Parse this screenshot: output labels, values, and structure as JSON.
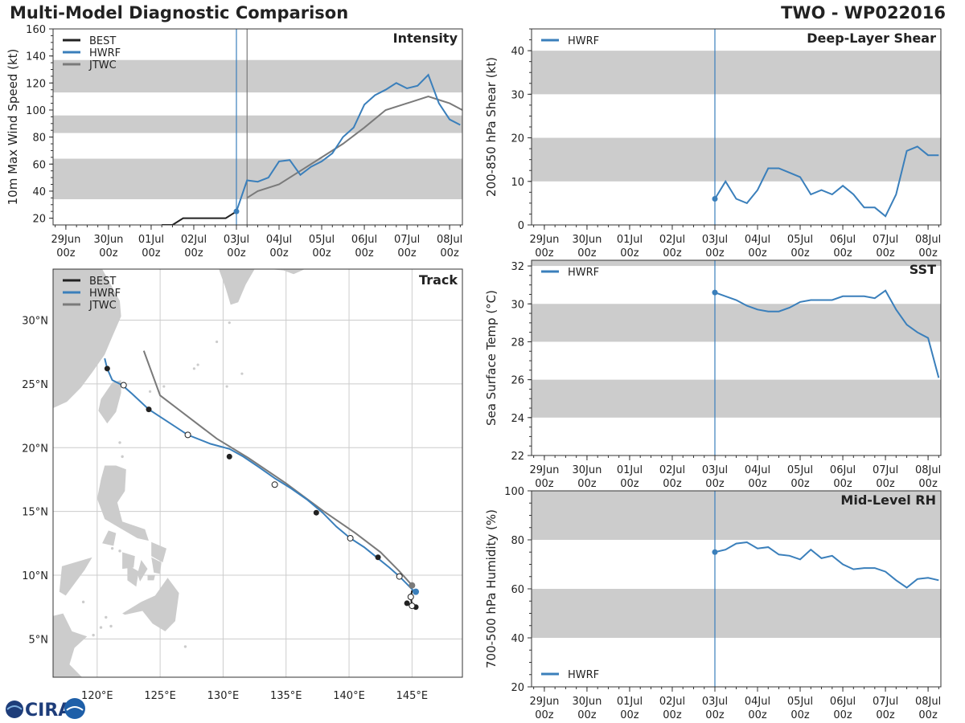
{
  "header": {
    "title_left": "Multi-Model Diagnostic Comparison",
    "title_right": "TWO - WP022016"
  },
  "logo": {
    "text": "CIRA"
  },
  "colors": {
    "best": "#222222",
    "hwrf": "#3a7fbb",
    "jtwc": "#7a7a7a",
    "band": "#cccccc",
    "grid": "#cccccc",
    "land": "#cccccc"
  },
  "time_axis": {
    "range_days": [
      -4.3,
      5.3
    ],
    "ticks": [
      {
        "day": -4,
        "line1": "29Jun",
        "line2": "00z"
      },
      {
        "day": -3,
        "line1": "30Jun",
        "line2": "00z"
      },
      {
        "day": -2,
        "line1": "01Jul",
        "line2": "00z"
      },
      {
        "day": -1,
        "line1": "02Jul",
        "line2": "00z"
      },
      {
        "day": 0,
        "line1": "03Jul",
        "line2": "00z"
      },
      {
        "day": 1,
        "line1": "04Jul",
        "line2": "00z"
      },
      {
        "day": 2,
        "line1": "05Jul",
        "line2": "00z"
      },
      {
        "day": 3,
        "line1": "06Jul",
        "line2": "00z"
      },
      {
        "day": 4,
        "line1": "07Jul",
        "line2": "00z"
      },
      {
        "day": 5,
        "line1": "08Jul",
        "line2": "00z"
      }
    ]
  },
  "chart_data": [
    {
      "id": "intensity",
      "type": "line",
      "title": "Intensity",
      "ylabel": "10m Max Wind Speed (kt)",
      "ylim": [
        15,
        160
      ],
      "yticks": [
        20,
        40,
        60,
        80,
        100,
        120,
        140,
        160
      ],
      "bands": [
        [
          34,
          64
        ],
        [
          83,
          96
        ],
        [
          113,
          137
        ]
      ],
      "vlines": [
        {
          "day": 0,
          "series": "HWRF"
        },
        {
          "day": 0.25,
          "series": "JTWC"
        }
      ],
      "legend": [
        "BEST",
        "HWRF",
        "JTWC"
      ],
      "series": [
        {
          "name": "BEST",
          "x": [
            -1.75,
            -1.5,
            -1.25,
            -1.0,
            -0.75,
            -0.5,
            -0.25,
            0.0
          ],
          "y": [
            15,
            15,
            20,
            20,
            20,
            20,
            20,
            25
          ]
        },
        {
          "name": "HWRF",
          "x": [
            0.0,
            0.25,
            0.5,
            0.75,
            1.0,
            1.25,
            1.5,
            1.75,
            2.0,
            2.25,
            2.5,
            2.75,
            3.0,
            3.25,
            3.5,
            3.75,
            4.0,
            4.25,
            4.5,
            4.75,
            5.0,
            5.25
          ],
          "y": [
            25,
            48,
            47,
            50,
            62,
            63,
            52,
            58,
            62,
            68,
            80,
            87,
            104,
            111,
            115,
            120,
            116,
            118,
            126,
            105,
            93,
            89
          ]
        },
        {
          "name": "JTWC",
          "x": [
            0.25,
            0.5,
            1.0,
            1.5,
            2.0,
            2.5,
            3.0,
            3.5,
            4.0,
            4.5,
            5.0,
            5.3
          ],
          "y": [
            35,
            40,
            45,
            55,
            65,
            75,
            87,
            100,
            105,
            110,
            105,
            100
          ]
        }
      ],
      "markers": [
        {
          "series": "HWRF",
          "x": 0.0,
          "y": 25
        }
      ]
    },
    {
      "id": "shear",
      "type": "line",
      "title": "Deep-Layer Shear",
      "ylabel": "200-850 hPa Shear (kt)",
      "ylim": [
        0,
        45
      ],
      "yticks": [
        0,
        10,
        20,
        30,
        40
      ],
      "bands": [
        [
          10,
          20
        ],
        [
          30,
          40
        ]
      ],
      "vlines": [
        {
          "day": 0,
          "series": "HWRF"
        }
      ],
      "legend": [
        "HWRF"
      ],
      "series": [
        {
          "name": "HWRF",
          "x": [
            0.0,
            0.25,
            0.5,
            0.75,
            1.0,
            1.25,
            1.5,
            1.75,
            2.0,
            2.25,
            2.5,
            2.75,
            3.0,
            3.25,
            3.5,
            3.75,
            4.0,
            4.25,
            4.5,
            4.75,
            5.0,
            5.25
          ],
          "y": [
            6,
            10,
            6,
            5,
            8,
            13,
            13,
            12,
            11,
            7,
            8,
            7,
            9,
            7,
            4,
            4,
            2,
            7,
            17,
            18,
            16,
            16
          ]
        }
      ],
      "markers": [
        {
          "series": "HWRF",
          "x": 0.0,
          "y": 6
        }
      ]
    },
    {
      "id": "sst",
      "type": "line",
      "title": "SST",
      "ylabel": "Sea Surface Temp (°C)",
      "ylim": [
        22,
        32.3
      ],
      "yticks": [
        22,
        24,
        26,
        28,
        30,
        32
      ],
      "bands": [
        [
          24,
          26
        ],
        [
          28,
          30
        ],
        [
          32,
          33
        ]
      ],
      "vlines": [
        {
          "day": 0,
          "series": "HWRF"
        }
      ],
      "legend": [
        "HWRF"
      ],
      "series": [
        {
          "name": "HWRF",
          "x": [
            0.0,
            0.25,
            0.5,
            0.75,
            1.0,
            1.25,
            1.5,
            1.75,
            2.0,
            2.25,
            2.5,
            2.75,
            3.0,
            3.25,
            3.5,
            3.75,
            4.0,
            4.25,
            4.5,
            4.75,
            5.0,
            5.25
          ],
          "y": [
            30.6,
            30.4,
            30.2,
            29.9,
            29.7,
            29.6,
            29.6,
            29.8,
            30.1,
            30.2,
            30.2,
            30.2,
            30.4,
            30.4,
            30.4,
            30.3,
            30.7,
            29.7,
            28.9,
            28.5,
            28.2,
            26.1
          ]
        }
      ],
      "markers": [
        {
          "series": "HWRF",
          "x": 0.0,
          "y": 30.6
        }
      ]
    },
    {
      "id": "rh",
      "type": "line",
      "title": "Mid-Level RH",
      "ylabel": "700-500 hPa Humidity (%)",
      "ylim": [
        20,
        100
      ],
      "yticks": [
        20,
        40,
        60,
        80,
        100
      ],
      "bands": [
        [
          40,
          60
        ],
        [
          80,
          100
        ]
      ],
      "vlines": [
        {
          "day": 0,
          "series": "HWRF"
        }
      ],
      "legend": [
        "HWRF"
      ],
      "legend_position": "bottom-left",
      "series": [
        {
          "name": "HWRF",
          "x": [
            0.0,
            0.25,
            0.5,
            0.75,
            1.0,
            1.25,
            1.5,
            1.75,
            2.0,
            2.25,
            2.5,
            2.75,
            3.0,
            3.25,
            3.5,
            3.75,
            4.0,
            4.25,
            4.5,
            4.75,
            5.0,
            5.25
          ],
          "y": [
            75,
            76,
            78.5,
            79,
            76.5,
            77,
            74,
            73.5,
            72,
            76,
            72.5,
            73.5,
            70,
            68,
            68.5,
            68.5,
            67,
            63.5,
            60.5,
            64,
            64.5,
            63.5
          ]
        }
      ],
      "markers": [
        {
          "series": "HWRF",
          "x": 0.0,
          "y": 75
        }
      ]
    },
    {
      "id": "track",
      "type": "scatter",
      "title": "Track",
      "xlim": [
        116.5,
        149
      ],
      "ylim": [
        2,
        34
      ],
      "xticks": [
        {
          "v": 120,
          "label": "120°E"
        },
        {
          "v": 125,
          "label": "125°E"
        },
        {
          "v": 130,
          "label": "130°E"
        },
        {
          "v": 135,
          "label": "135°E"
        },
        {
          "v": 140,
          "label": "140°E"
        },
        {
          "v": 145,
          "label": "145°E"
        }
      ],
      "yticks": [
        {
          "v": 5,
          "label": "5°N"
        },
        {
          "v": 10,
          "label": "10°N"
        },
        {
          "v": 15,
          "label": "15°N"
        },
        {
          "v": 20,
          "label": "20°N"
        },
        {
          "v": 25,
          "label": "25°N"
        },
        {
          "v": 30,
          "label": "30°N"
        }
      ],
      "legend": [
        "BEST",
        "HWRF",
        "JTWC"
      ],
      "series": [
        {
          "name": "BEST",
          "lon": [
            145.3,
            144.6,
            145.0,
            144.9,
            145.0
          ],
          "lat": [
            7.5,
            7.8,
            7.6,
            8.3,
            8.8
          ]
        },
        {
          "name": "HWRF",
          "lon": [
            145.2,
            144.6,
            144.0,
            143.2,
            142.2,
            141.2,
            140.1,
            139.0,
            137.9,
            136.7,
            135.4,
            134.1,
            132.8,
            131.6,
            130.5,
            129.0,
            127.2,
            125.5,
            124.1,
            122.8,
            122.0,
            121.2,
            120.8,
            120.6
          ],
          "lat": [
            8.7,
            9.3,
            9.9,
            10.6,
            11.4,
            12.2,
            12.9,
            13.8,
            14.9,
            15.9,
            16.8,
            17.6,
            18.5,
            19.3,
            19.9,
            20.3,
            21.0,
            22.1,
            23.0,
            24.2,
            24.9,
            25.3,
            26.2,
            27.0
          ]
        },
        {
          "name": "JTWC",
          "lon": [
            145.0,
            144.0,
            142.5,
            140.5,
            138.0,
            135.0,
            132.0,
            129.5,
            125.0,
            123.7
          ],
          "lat": [
            9.2,
            10.3,
            11.8,
            13.3,
            15.0,
            17.2,
            19.2,
            20.7,
            24.1,
            27.6
          ]
        }
      ],
      "markers_filled": [
        {
          "lon": 120.8,
          "lat": 26.2
        },
        {
          "lon": 124.1,
          "lat": 23.0
        },
        {
          "lon": 130.5,
          "lat": 19.3
        },
        {
          "lon": 137.4,
          "lat": 14.9
        },
        {
          "lon": 142.3,
          "lat": 11.4
        },
        {
          "lon": 144.6,
          "lat": 7.8
        },
        {
          "lon": 145.3,
          "lat": 7.5
        }
      ],
      "markers_open": [
        {
          "lon": 122.1,
          "lat": 24.9
        },
        {
          "lon": 127.2,
          "lat": 21.0
        },
        {
          "lon": 134.1,
          "lat": 17.1
        },
        {
          "lon": 140.1,
          "lat": 12.9
        },
        {
          "lon": 144.0,
          "lat": 9.9
        },
        {
          "lon": 144.9,
          "lat": 8.3
        },
        {
          "lon": 145.0,
          "lat": 7.6
        }
      ],
      "hwrf_start": {
        "lon": 145.3,
        "lat": 8.7
      },
      "jtwc_start": {
        "lon": 145.0,
        "lat": 9.2
      }
    }
  ]
}
